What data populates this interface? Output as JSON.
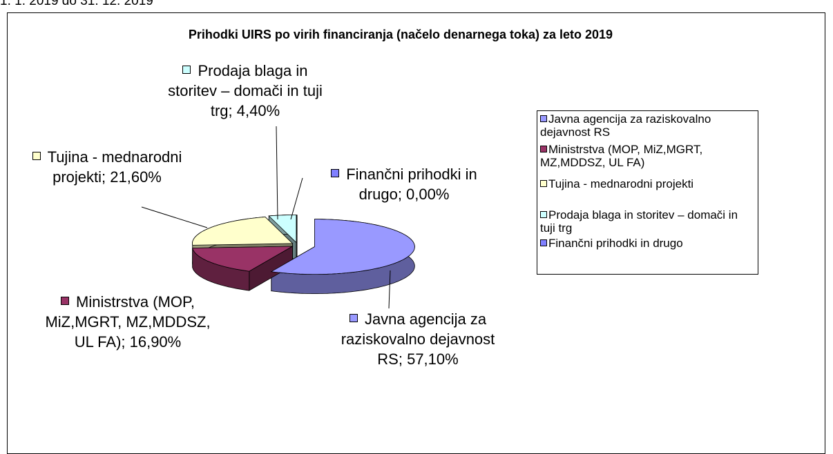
{
  "header_text": "1. 1. 2019 do 31. 12. 2019",
  "chart_data": {
    "type": "pie",
    "title": "Prihodki UIRS po virih financiranja (načelo denarnega toka) za leto 2019",
    "categories": [
      "Javna agencija za raziskovalno dejavnost RS",
      "Ministrstva (MOP, MiZ,MGRT, MZ,MDDSZ, UL FA)",
      "Tujina - mednarodni projekti",
      "Prodaja blaga in storitev – domači in tuji trg",
      "Finančni prihodki in drugo"
    ],
    "values": [
      57.1,
      16.9,
      21.6,
      4.4,
      0.0
    ],
    "value_labels": [
      "Javna agencija za raziskovalno dejavnost RS; 57,10%",
      "Ministrstva (MOP, MiZ,MGRT, MZ,MDDSZ, UL FA); 16,90%",
      "Tujina - mednarodni projekti; 21,60%",
      "Prodaja blaga in storitev – domači in tuji trg; 4,40%",
      "Finančni prihodki in drugo; 0,00%"
    ],
    "colors": [
      "#9999ff",
      "#993366",
      "#ffffcc",
      "#ccffff",
      "#8080ff"
    ],
    "legend": "right"
  }
}
